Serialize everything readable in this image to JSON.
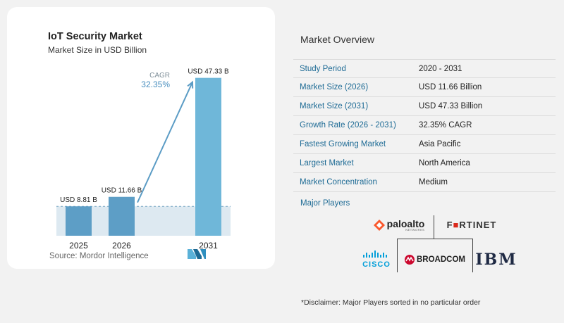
{
  "chart_data": {
    "type": "bar",
    "title": "IoT Security Market",
    "subtitle": "Market Size in USD Billion",
    "categories": [
      "2025",
      "2026",
      "2031"
    ],
    "values": [
      8.81,
      11.66,
      47.33
    ],
    "data_labels": [
      "USD 8.81 B",
      "USD 11.66 B",
      "USD 47.33 B"
    ],
    "cagr_label": "CAGR",
    "cagr_value": "32.35%",
    "ylim": [
      0,
      50
    ],
    "bar_colors": [
      "#5d9ec6",
      "#5d9ec6",
      "#6fb7d9"
    ],
    "arrow_color": "#5b9cc5"
  },
  "source": "Source:  Mordor Intelligence",
  "overview": {
    "title": "Market Overview",
    "rows": [
      {
        "label": "Study Period",
        "value": "2020 - 2031"
      },
      {
        "label": "Market Size (2026)",
        "value": "USD 11.66 Billion"
      },
      {
        "label": "Market Size (2031)",
        "value": "USD 47.33 Billion"
      },
      {
        "label": "Growth Rate (2026 - 2031)",
        "value": "32.35% CAGR"
      },
      {
        "label": "Fastest Growing Market",
        "value": "Asia Pacific"
      },
      {
        "label": "Largest Market",
        "value": "North America"
      },
      {
        "label": "Market Concentration",
        "value": "Medium"
      }
    ]
  },
  "major_players": {
    "title": "Major Players",
    "logos": {
      "paloalto": "paloalto",
      "paloalto_sub": "NETWORKS",
      "fortinet": "F■RTINET",
      "cisco": "CISCO",
      "broadcom": "BROADCOM",
      "ibm": "IBM"
    }
  },
  "disclaimer": "*Disclaimer: Major Players sorted in no particular order",
  "colors": {
    "accent_blue": "#1e6b95",
    "paloalto_orange": "#fa582d",
    "fortinet_red": "#da291c",
    "cisco_blue": "#049fd9",
    "broadcom_red": "#cc092f",
    "ibm_dark": "#1f2a44"
  }
}
